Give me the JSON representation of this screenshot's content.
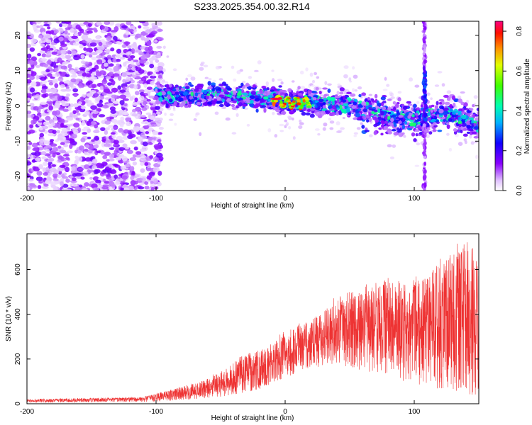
{
  "title": "S233.2025.354.00.32.R14",
  "chart_data": [
    {
      "type": "heatmap",
      "name": "spectrogram",
      "xlabel": "Height of straight line (km)",
      "ylabel": "Frequency (Hz)",
      "xlim": [
        -200,
        150
      ],
      "ylim": [
        -24,
        24
      ],
      "xticks": [
        -200,
        -100,
        0,
        100
      ],
      "xtick_labels": [
        "-200",
        "-100",
        "0",
        "100"
      ],
      "yticks": [
        -20,
        -10,
        0,
        10,
        20
      ],
      "ytick_labels": [
        "-20",
        "-10",
        "0",
        "10",
        "20"
      ],
      "colorbar": {
        "label": "Normalized spectral amplitude",
        "range": [
          0.0,
          0.85
        ],
        "ticks": [
          0.0,
          0.2,
          0.4,
          0.6,
          0.8
        ],
        "tick_labels": [
          "0.0",
          "0.2",
          "0.4",
          "0.6",
          "0.8"
        ],
        "colormap": "rainbow"
      },
      "features": {
        "broadband_noise_region": [
          -200,
          -100
        ],
        "signal_band_center_hz": [
          [
            -100,
            3
          ],
          [
            -50,
            3
          ],
          [
            -10,
            2
          ],
          [
            0,
            1
          ],
          [
            20,
            1
          ],
          [
            50,
            0
          ],
          [
            80,
            -3
          ],
          [
            100,
            -4
          ],
          [
            125,
            -2
          ],
          [
            150,
            -6
          ]
        ],
        "peak_region": [
          -10,
          20
        ],
        "vertical_streak_km": 108
      }
    },
    {
      "type": "line",
      "name": "snr",
      "xlabel": "Height of straight line (km)",
      "ylabel": "SNR (10 * v/v)",
      "xlim": [
        -200,
        150
      ],
      "ylim": [
        0,
        760
      ],
      "xticks": [
        -200,
        -100,
        0,
        100
      ],
      "xtick_labels": [
        "-200",
        "-100",
        "0",
        "100"
      ],
      "yticks": [
        0,
        200,
        400,
        600
      ],
      "ytick_labels": [
        "0",
        "200",
        "400",
        "600"
      ],
      "color": "#ee3333",
      "envelope": {
        "x": [
          -200,
          -110,
          -90,
          -70,
          -50,
          -30,
          -10,
          0,
          20,
          40,
          60,
          80,
          100,
          120,
          140,
          150
        ],
        "upper": [
          20,
          30,
          60,
          90,
          140,
          220,
          260,
          320,
          380,
          460,
          500,
          560,
          540,
          620,
          720,
          680
        ],
        "lower": [
          5,
          8,
          12,
          20,
          30,
          50,
          80,
          110,
          150,
          180,
          140,
          120,
          80,
          60,
          40,
          30
        ]
      }
    }
  ]
}
